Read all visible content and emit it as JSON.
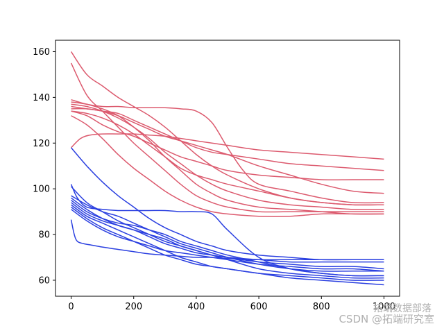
{
  "chart_data": {
    "type": "line",
    "xlim": [
      -50,
      1050
    ],
    "ylim": [
      53,
      165
    ],
    "xticks": [
      0,
      200,
      400,
      600,
      800,
      1000
    ],
    "yticks": [
      60,
      80,
      100,
      120,
      140,
      160
    ],
    "grid": false,
    "colors": {
      "red": "#dc5a6e",
      "blue": "#2a3fe0"
    },
    "series": [
      {
        "group": "red",
        "x": [
          0,
          50,
          100,
          150,
          200,
          250,
          300,
          350,
          400,
          450,
          500,
          600,
          700,
          800,
          900,
          1000
        ],
        "y": [
          160,
          150,
          145,
          140,
          136,
          132,
          127,
          121,
          115,
          110,
          106,
          100,
          96,
          94,
          93,
          93
        ]
      },
      {
        "group": "red",
        "x": [
          0,
          50,
          100,
          150,
          200,
          250,
          300,
          350,
          400,
          450,
          500,
          600,
          700,
          800,
          900,
          1000
        ],
        "y": [
          155,
          141,
          134,
          127,
          120,
          114,
          108,
          102,
          97,
          94,
          92,
          90,
          90,
          90,
          90,
          90
        ]
      },
      {
        "group": "red",
        "x": [
          0,
          50,
          100,
          150,
          200,
          250,
          300,
          350,
          400,
          450,
          500,
          550,
          600,
          700,
          800,
          900,
          1000
        ],
        "y": [
          139,
          137,
          136,
          136,
          135.5,
          135.5,
          135.5,
          135,
          134,
          129,
          118,
          108,
          102,
          99,
          96,
          94,
          94
        ]
      },
      {
        "group": "red",
        "x": [
          0,
          50,
          100,
          150,
          200,
          250,
          300,
          350,
          400,
          450,
          500,
          600,
          700,
          800,
          900,
          1000
        ],
        "y": [
          138,
          137,
          135,
          132,
          127,
          121,
          114,
          108,
          102,
          98,
          95,
          92,
          91,
          90,
          89,
          89
        ]
      },
      {
        "group": "red",
        "x": [
          0,
          50,
          100,
          150,
          200,
          250,
          300,
          350,
          400,
          450,
          500,
          600,
          700,
          800,
          900,
          1000
        ],
        "y": [
          137,
          136,
          134,
          131,
          127,
          122,
          116,
          111,
          106,
          102,
          99,
          95,
          93,
          92,
          91,
          91
        ]
      },
      {
        "group": "red",
        "x": [
          0,
          50,
          100,
          150,
          200,
          250,
          300,
          350,
          400,
          450,
          500,
          600,
          700,
          800,
          900,
          1000
        ],
        "y": [
          136,
          135,
          134,
          132,
          129,
          126,
          123,
          121,
          119,
          117,
          115,
          110,
          106,
          102,
          99,
          98
        ]
      },
      {
        "group": "red",
        "x": [
          0,
          50,
          100,
          150,
          200,
          250,
          300,
          350,
          400,
          450,
          500,
          600,
          700,
          800,
          900,
          1000
        ],
        "y": [
          135,
          135,
          134,
          133,
          130,
          127,
          124,
          121,
          118,
          116,
          115,
          113,
          111,
          110,
          109,
          108
        ]
      },
      {
        "group": "red",
        "x": [
          0,
          50,
          100,
          150,
          200,
          250,
          300,
          350,
          400,
          450,
          500,
          600,
          700,
          800,
          900,
          1000
        ],
        "y": [
          134,
          133,
          131,
          128,
          124,
          119,
          114,
          109,
          106,
          104,
          102,
          99,
          96,
          94,
          93,
          93
        ]
      },
      {
        "group": "red",
        "x": [
          0,
          50,
          100,
          150,
          200,
          250,
          300,
          350,
          400,
          450,
          500,
          600,
          700,
          800,
          900,
          1000
        ],
        "y": [
          132,
          128,
          122,
          115,
          109,
          104,
          99,
          95,
          92,
          90,
          89,
          88,
          88,
          89,
          89,
          89
        ]
      },
      {
        "group": "red",
        "x": [
          0,
          30,
          60,
          100,
          150,
          200,
          250,
          300,
          400,
          500,
          600,
          700,
          800,
          900,
          1000
        ],
        "y": [
          118,
          122,
          123.5,
          124,
          124,
          124,
          123.5,
          123,
          121,
          119,
          117,
          116,
          115,
          114,
          113
        ]
      },
      {
        "group": "red",
        "x": [
          0,
          50,
          100,
          150,
          200,
          250,
          300,
          350,
          400,
          450,
          500,
          600,
          700,
          800,
          900,
          1000
        ],
        "y": [
          134,
          132,
          128,
          125,
          123,
          120,
          117,
          114,
          112,
          110,
          108,
          106,
          105,
          104,
          104,
          104
        ]
      },
      {
        "group": "blue",
        "x": [
          0,
          50,
          100,
          150,
          200,
          250,
          300,
          350,
          400,
          450,
          500,
          600,
          700,
          800,
          900,
          1000
        ],
        "y": [
          118,
          110,
          103,
          97,
          92,
          87,
          83,
          80,
          77,
          75,
          73,
          71,
          70,
          69,
          69,
          69
        ]
      },
      {
        "group": "blue",
        "x": [
          0,
          20,
          50,
          100,
          150,
          200,
          250,
          300,
          350,
          400,
          450,
          500,
          600,
          700,
          800,
          900,
          1000
        ],
        "y": [
          102,
          96,
          92,
          91,
          90.5,
          90.5,
          90.5,
          90.5,
          90,
          90,
          89,
          82,
          70,
          65,
          63,
          62,
          62
        ]
      },
      {
        "group": "blue",
        "x": [
          0,
          50,
          100,
          150,
          200,
          250,
          300,
          350,
          400,
          450,
          500,
          600,
          700,
          800,
          900,
          1000
        ],
        "y": [
          101,
          94,
          90,
          86,
          83,
          80,
          77,
          75,
          73,
          71,
          70,
          68,
          67,
          66,
          66,
          65
        ]
      },
      {
        "group": "blue",
        "x": [
          0,
          50,
          100,
          150,
          200,
          250,
          300,
          350,
          400,
          450,
          500,
          600,
          700,
          800,
          900,
          1000
        ],
        "y": [
          97,
          93,
          90,
          88,
          85,
          82,
          79,
          76,
          74,
          72,
          70,
          67,
          65,
          64,
          64,
          64
        ]
      },
      {
        "group": "blue",
        "x": [
          0,
          50,
          100,
          150,
          200,
          250,
          300,
          350,
          400,
          450,
          500,
          600,
          700,
          800,
          900,
          1000
        ],
        "y": [
          96,
          91,
          87,
          84,
          82,
          80,
          78,
          75,
          73,
          71,
          69,
          65,
          63,
          62,
          61,
          61
        ]
      },
      {
        "group": "blue",
        "x": [
          0,
          50,
          100,
          150,
          200,
          250,
          300,
          350,
          400,
          450,
          500,
          600,
          700,
          800,
          900,
          1000
        ],
        "y": [
          95,
          90,
          87,
          85,
          84,
          82,
          80,
          77,
          75,
          73,
          71,
          68,
          65,
          63,
          62,
          62
        ]
      },
      {
        "group": "blue",
        "x": [
          0,
          50,
          100,
          150,
          200,
          250,
          300,
          350,
          400,
          450,
          500,
          600,
          700,
          800,
          900,
          1000
        ],
        "y": [
          94,
          89,
          86,
          84,
          82,
          79,
          76,
          74,
          72,
          71,
          70,
          69,
          68,
          68,
          68,
          68
        ]
      },
      {
        "group": "blue",
        "x": [
          0,
          50,
          100,
          150,
          200,
          250,
          300,
          350,
          400,
          450,
          500,
          600,
          700,
          800,
          900,
          1000
        ],
        "y": [
          93,
          88,
          85,
          82,
          79,
          76,
          73,
          70,
          68,
          66,
          65,
          63,
          62,
          61,
          60,
          60
        ]
      },
      {
        "group": "blue",
        "x": [
          0,
          50,
          100,
          150,
          200,
          250,
          300,
          350,
          400,
          450,
          500,
          600,
          700,
          800,
          900,
          1000
        ],
        "y": [
          92,
          87,
          83,
          80,
          77,
          74,
          71,
          69,
          67,
          66,
          65,
          63,
          61,
          60,
          59,
          58
        ]
      },
      {
        "group": "blue",
        "x": [
          0,
          50,
          100,
          150,
          200,
          250,
          300,
          350,
          400,
          450,
          500,
          600,
          700,
          800,
          900,
          1000
        ],
        "y": [
          91,
          86,
          82,
          79,
          77,
          75,
          73,
          72,
          71,
          70,
          69,
          67,
          66,
          65,
          65,
          64
        ]
      },
      {
        "group": "blue",
        "x": [
          0,
          10,
          20,
          40,
          60,
          100,
          150,
          200,
          250,
          300,
          350,
          400,
          450,
          500,
          600,
          700,
          800,
          900,
          1000
        ],
        "y": [
          86.5,
          80,
          77,
          76,
          75.5,
          74.5,
          73.5,
          72.5,
          71.5,
          71,
          70.5,
          70,
          70,
          69.5,
          69,
          69,
          69,
          69,
          69
        ]
      }
    ]
  },
  "watermark": {
    "line1": "拓端数据部落",
    "line2": "CSDN @拓端研究室"
  }
}
